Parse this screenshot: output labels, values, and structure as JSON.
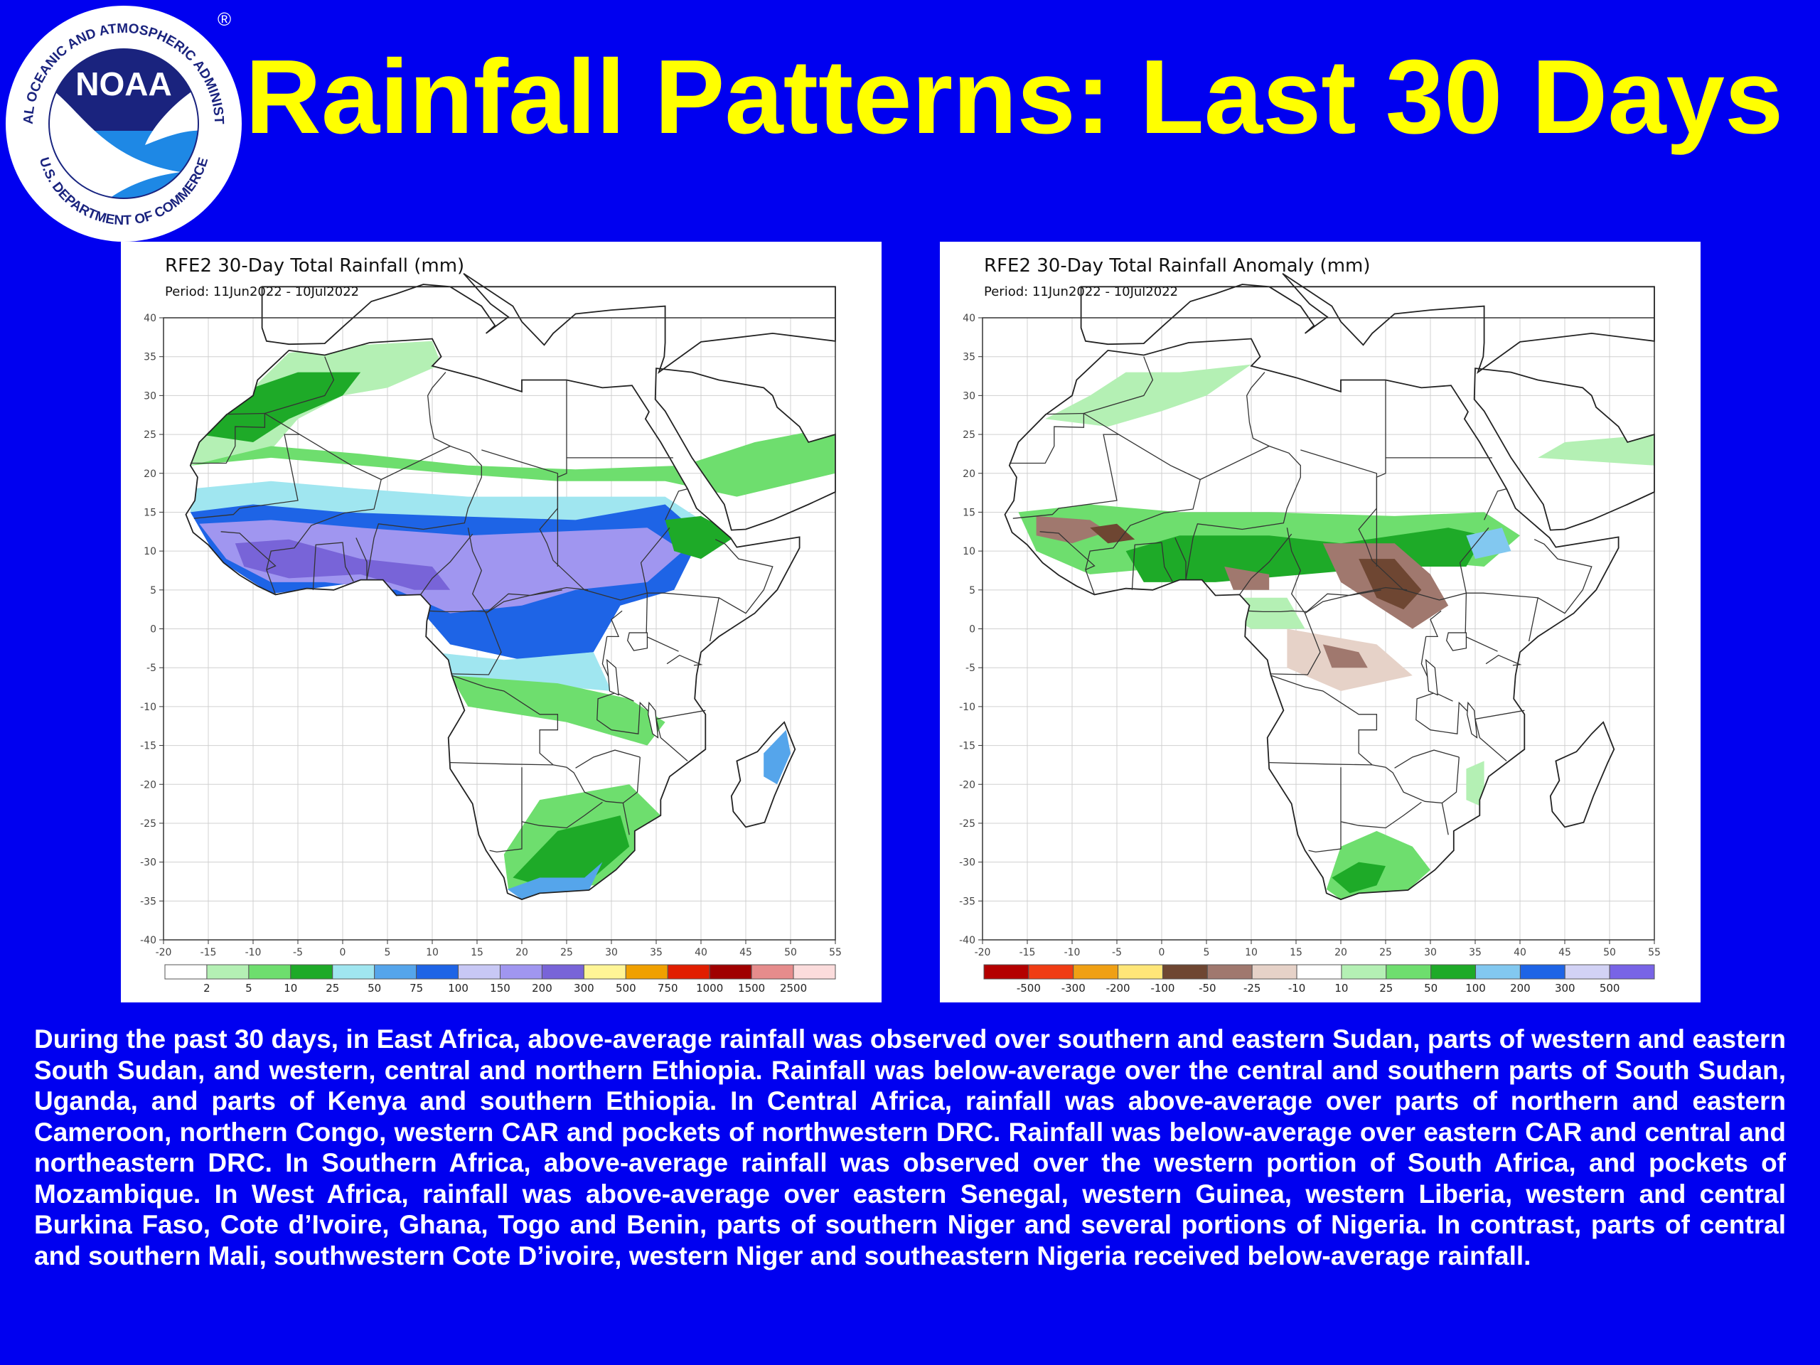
{
  "slide": {
    "title": "Rainfall Patterns: Last 30 Days",
    "summary": "During the past 30 days, in East Africa, above-average rainfall was observed over southern and eastern Sudan, parts of western and eastern South Sudan, and western, central and northern Ethiopia. Rainfall was below-average over the central and southern parts of South Sudan, Uganda, and parts of Kenya and southern Ethiopia. In Central Africa, rainfall was above-average over parts of northern and eastern Cameroon, northern Congo, western CAR and pockets of northwestern DRC. Rainfall was below-average over eastern CAR and central and northeastern DRC. In Southern Africa, above-average rainfall was observed over the western portion of South Africa, and pockets of Mozambique. In West Africa, rainfall was above-average over eastern Senegal, western Guinea, western Liberia, western and central Burkina Faso, Cote d’Ivoire, Ghana, Togo and Benin, parts of southern Niger and several portions of Nigeria. In contrast, parts of central and southern Mali, southwestern Cote D’ivoire, western Niger and southeastern Nigeria received below-average rainfall."
  },
  "logo": {
    "center_text": "NOAA",
    "ring_top": "NATIONAL OCEANIC AND ATMOSPHERIC ADMINISTRATION",
    "ring_bottom": "U.S. DEPARTMENT OF COMMERCE",
    "registered": "®"
  },
  "maps": [
    {
      "title": "RFE2 30-Day Total Rainfall (mm)",
      "period": "Period:  11Jun2022  -  10Jul2022",
      "y_ticks": [
        "40",
        "35",
        "30",
        "25",
        "20",
        "15",
        "10",
        "5",
        "0",
        "-5",
        "-10",
        "-15",
        "-20",
        "-25",
        "-30",
        "-35",
        "-40"
      ],
      "x_ticks": [
        "-20",
        "-15",
        "-10",
        "-5",
        "0",
        "5",
        "10",
        "15",
        "20",
        "25",
        "30",
        "35",
        "40",
        "45",
        "50",
        "55"
      ],
      "legend_labels": [
        "2",
        "5",
        "10",
        "25",
        "50",
        "75",
        "100",
        "150",
        "200",
        "300",
        "500",
        "750",
        "1000",
        "1500",
        "2500"
      ],
      "legend_colors": [
        "#ffffff",
        "#b4f0b4",
        "#6ede6e",
        "#1eaa28",
        "#a0e6f0",
        "#55a5eb",
        "#1e64e6",
        "#c8c8f5",
        "#a096f0",
        "#7864d8",
        "#fff596",
        "#f0a000",
        "#e11e00",
        "#a00000",
        "#e68c8c",
        "#fbdcdc"
      ]
    },
    {
      "title": "RFE2 30-Day Total Rainfall Anomaly (mm)",
      "period": "Period:  11Jun2022  -  10Jul2022",
      "y_ticks": [
        "40",
        "35",
        "30",
        "25",
        "20",
        "15",
        "10",
        "5",
        "0",
        "-5",
        "-10",
        "-15",
        "-20",
        "-25",
        "-30",
        "-35",
        "-40"
      ],
      "x_ticks": [
        "-20",
        "-15",
        "-10",
        "-5",
        "0",
        "5",
        "10",
        "15",
        "20",
        "25",
        "30",
        "35",
        "40",
        "45",
        "50",
        "55"
      ],
      "legend_labels": [
        "-500",
        "-300",
        "-200",
        "-100",
        "-50",
        "-25",
        "-10",
        "10",
        "25",
        "50",
        "100",
        "200",
        "300",
        "500"
      ],
      "legend_colors": [
        "#b40000",
        "#f03c14",
        "#f0a014",
        "#ffe678",
        "#6e4632",
        "#a0786e",
        "#e6d2c8",
        "#ffffff",
        "#b4f0b4",
        "#6ede6e",
        "#1eaa28",
        "#82c8f0",
        "#1e64e6",
        "#d2d2f5",
        "#7864e6"
      ]
    }
  ]
}
